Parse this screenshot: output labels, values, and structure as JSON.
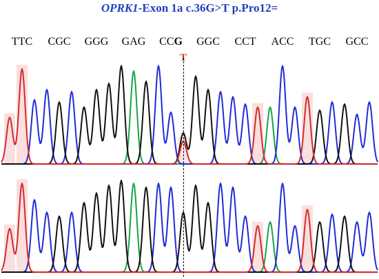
{
  "title": {
    "gene": "OPRK1",
    "rest": "-Exon 1a c.36G>T p.Pro12="
  },
  "codons": [
    {
      "text": "TTC"
    },
    {
      "text": "CGC"
    },
    {
      "text": "GGG"
    },
    {
      "text": "GAG"
    },
    {
      "text": "CCG",
      "prefix": "CC",
      "bold": "G"
    },
    {
      "text": "GGC"
    },
    {
      "text": "CCT"
    },
    {
      "text": "ACC"
    },
    {
      "text": "TGC"
    },
    {
      "text": "GCC"
    }
  ],
  "mutation_label": "T",
  "colors": {
    "A": "#15a34a",
    "C": "#1f2bd6",
    "G": "#111111",
    "T": "#d42a2a",
    "title": "#1f3fbf",
    "mutation": "#c0392b",
    "highlight_T": "#f7d2d2"
  },
  "traces": {
    "top": {
      "bases": "TTCCGCGGGGAGCCGGGCCCTACCTGCGCC",
      "heights": [
        0.45,
        0.92,
        0.62,
        0.72,
        0.6,
        0.7,
        0.55,
        0.72,
        0.78,
        0.95,
        0.9,
        0.8,
        0.95,
        0.5,
        0.3,
        0.85,
        0.72,
        0.7,
        0.65,
        0.58,
        0.55,
        0.55,
        0.95,
        0.55,
        0.65,
        0.52,
        0.6,
        0.58,
        0.48,
        0.6
      ],
      "secondary": [
        {
          "index": 14,
          "base": "T",
          "height": 0.22
        }
      ]
    },
    "bottom": {
      "bases": "TTCCGCGGGGAGCCGGGCCCTACCTGCGCC",
      "heights": [
        0.45,
        0.92,
        0.75,
        0.62,
        0.58,
        0.62,
        0.72,
        0.82,
        0.9,
        0.95,
        0.92,
        0.88,
        0.92,
        0.88,
        0.62,
        0.9,
        0.72,
        0.92,
        0.88,
        0.58,
        0.48,
        0.52,
        0.92,
        0.48,
        0.65,
        0.52,
        0.6,
        0.58,
        0.52,
        0.62
      ]
    }
  }
}
